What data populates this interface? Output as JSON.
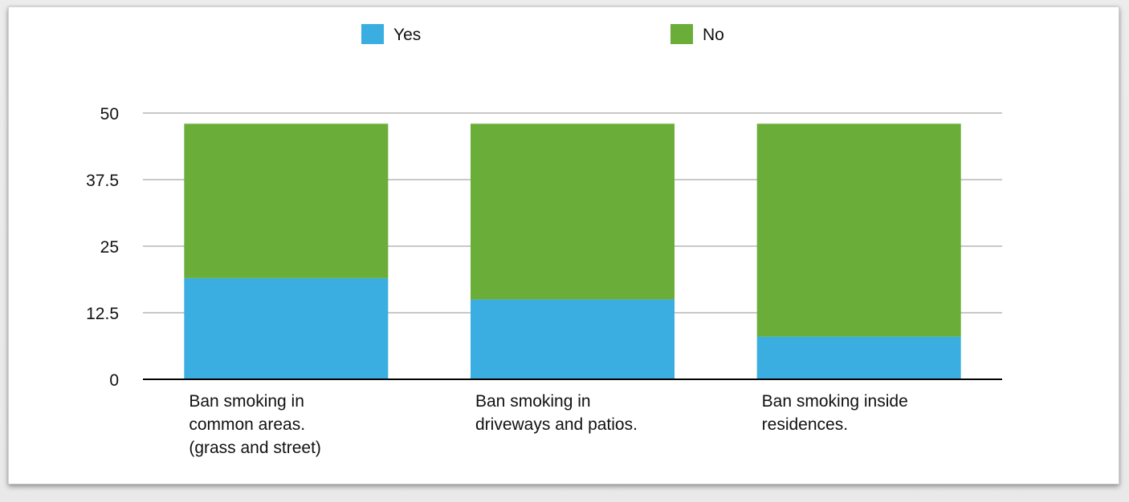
{
  "chart_data": {
    "type": "bar",
    "stacked": true,
    "categories": [
      [
        "Ban smoking in",
        "common areas.",
        "(grass and street)"
      ],
      [
        "Ban smoking in",
        "driveways and patios."
      ],
      [
        "Ban smoking inside",
        "residences."
      ]
    ],
    "series": [
      {
        "name": "Yes",
        "values": [
          19,
          15,
          8
        ],
        "color": "#3aaee0"
      },
      {
        "name": "No",
        "values": [
          29,
          33,
          40
        ],
        "color": "#6aad38"
      }
    ],
    "y_ticks": [
      "0",
      "12.5",
      "25",
      "37.5",
      "50"
    ],
    "ylim": [
      0,
      50
    ],
    "grid": true,
    "legend_position": "top"
  }
}
